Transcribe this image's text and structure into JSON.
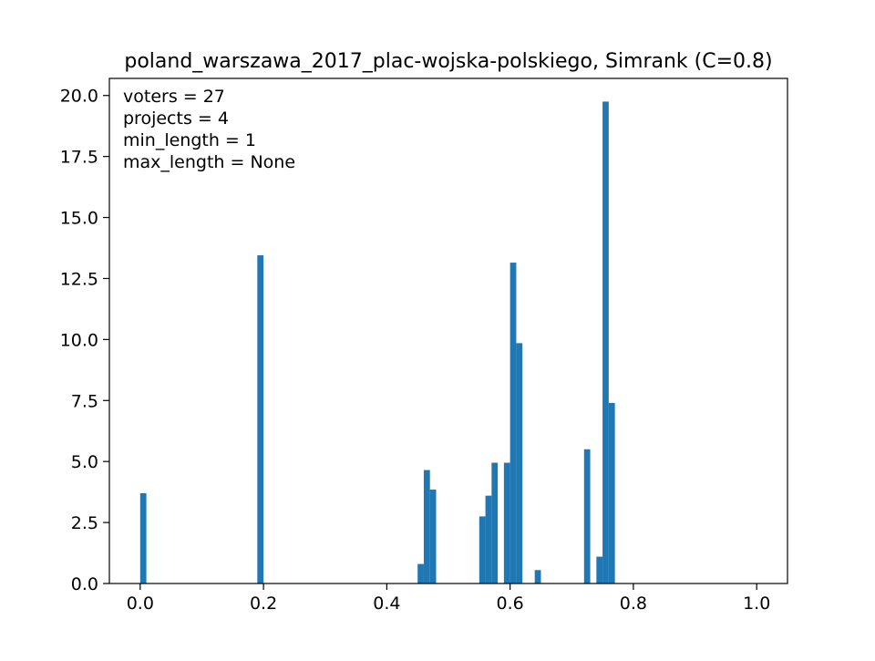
{
  "chart_data": {
    "type": "bar",
    "title": "poland_warszawa_2017_plac-wojska-polskiego, Simrank (C=0.8)",
    "xlabel": "",
    "ylabel": "",
    "xlim": [
      -0.05,
      1.05
    ],
    "ylim": [
      0,
      20.7
    ],
    "bin_width": 0.01,
    "xticks": [
      0.0,
      0.2,
      0.4,
      0.6,
      0.8,
      1.0
    ],
    "xtick_labels": [
      "0.0",
      "0.2",
      "0.4",
      "0.6",
      "0.8",
      "1.0"
    ],
    "yticks": [
      0.0,
      2.5,
      5.0,
      7.5,
      10.0,
      12.5,
      15.0,
      17.5,
      20.0
    ],
    "ytick_labels": [
      "0.0",
      "2.5",
      "5.0",
      "7.5",
      "10.0",
      "12.5",
      "15.0",
      "17.5",
      "20.0"
    ],
    "annotations": [
      "voters = 27",
      "projects = 4",
      "min_length = 1",
      "max_length = None"
    ],
    "grid": false,
    "bar_color": "#1f77b4",
    "bins": [
      {
        "x": 0.0,
        "value": 3.7
      },
      {
        "x": 0.19,
        "value": 13.45
      },
      {
        "x": 0.45,
        "value": 0.8
      },
      {
        "x": 0.46,
        "value": 4.65
      },
      {
        "x": 0.47,
        "value": 3.85
      },
      {
        "x": 0.55,
        "value": 2.75
      },
      {
        "x": 0.56,
        "value": 3.6
      },
      {
        "x": 0.57,
        "value": 4.95
      },
      {
        "x": 0.59,
        "value": 4.95
      },
      {
        "x": 0.6,
        "value": 13.15
      },
      {
        "x": 0.61,
        "value": 9.85
      },
      {
        "x": 0.64,
        "value": 0.55
      },
      {
        "x": 0.72,
        "value": 5.5
      },
      {
        "x": 0.74,
        "value": 1.1
      },
      {
        "x": 0.75,
        "value": 19.75
      },
      {
        "x": 0.76,
        "value": 7.4
      }
    ]
  }
}
